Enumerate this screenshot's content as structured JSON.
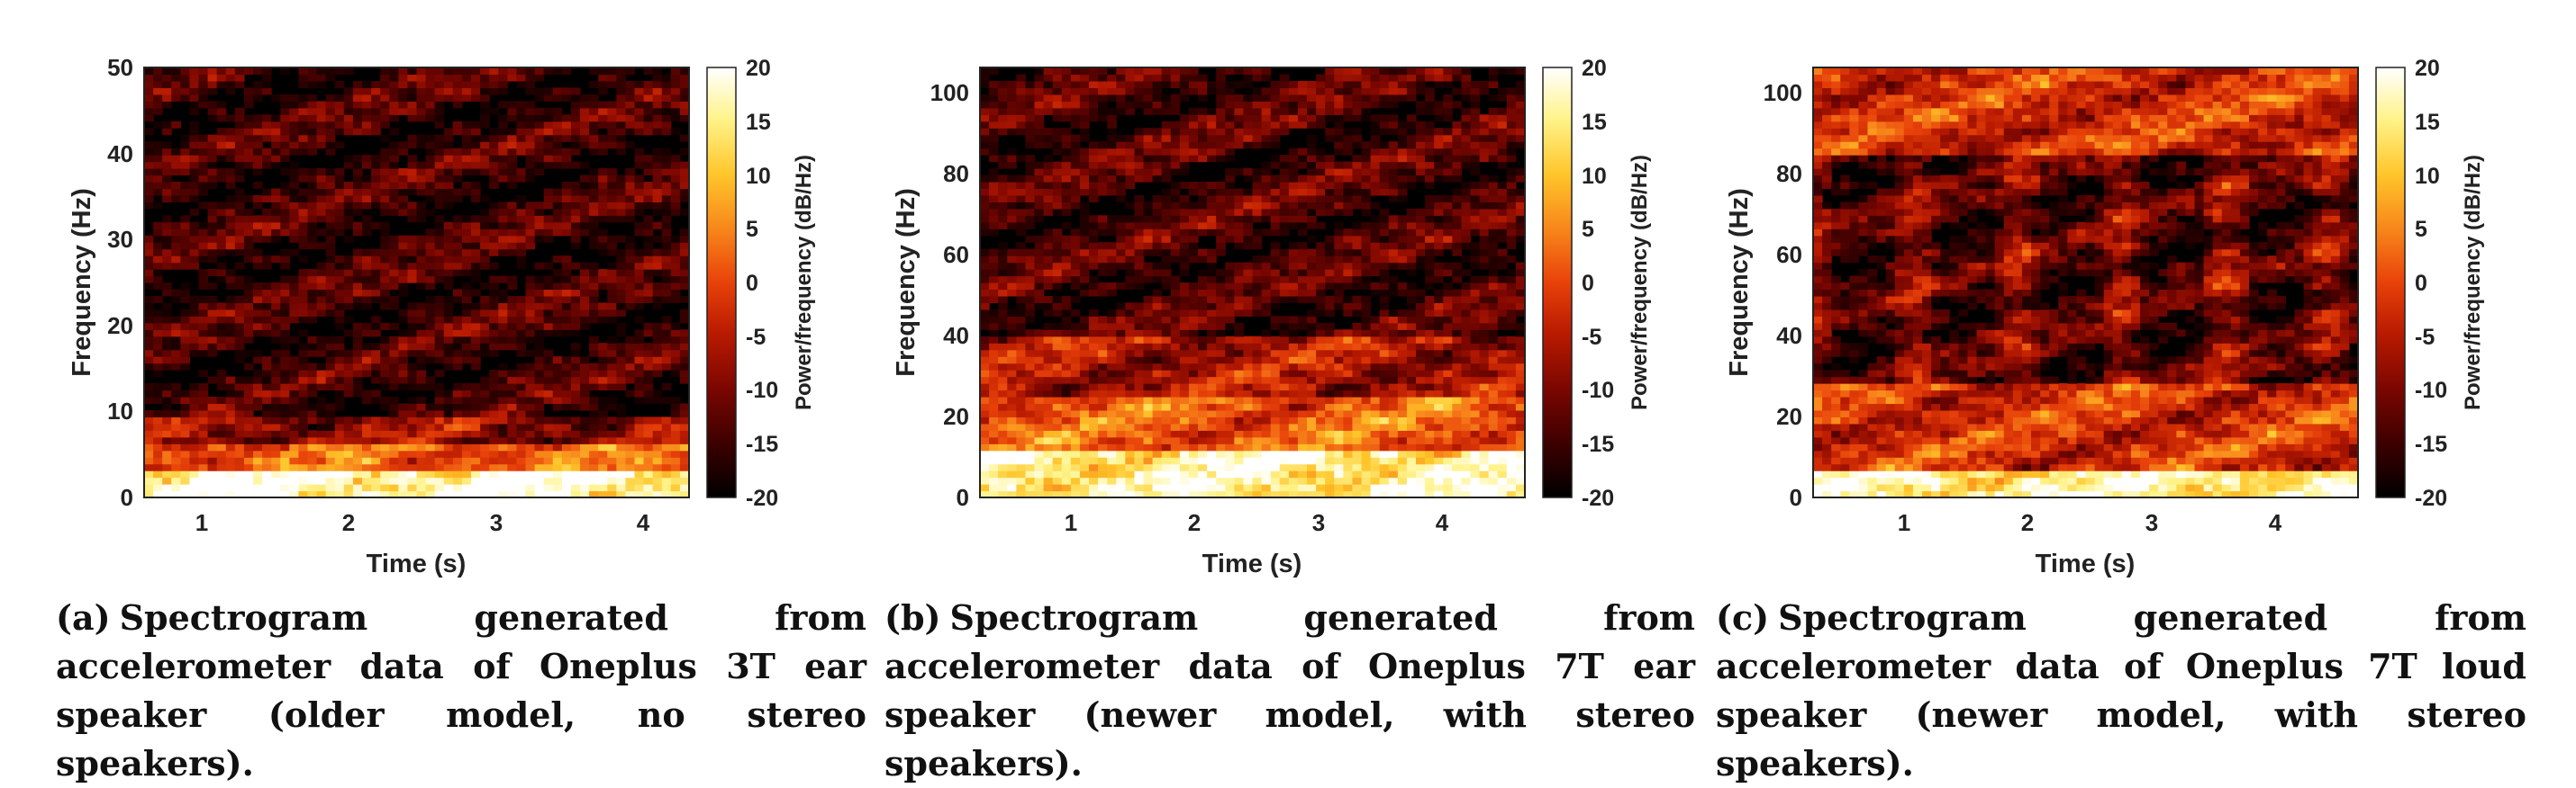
{
  "figure": {
    "colormap": [
      "#000000",
      "#3a0000",
      "#7a0600",
      "#b81a00",
      "#e8420a",
      "#f7841a",
      "#ffc52a",
      "#fff38a",
      "#ffffff"
    ],
    "colorbar": {
      "label": "Power/frequency (dB/Hz)",
      "ticks": [
        "20",
        "15",
        "10",
        "5",
        "0",
        "-5",
        "-10",
        "-15",
        "-20"
      ]
    }
  },
  "chart_data": [
    {
      "type": "heatmap",
      "id": "a",
      "xlabel": "Time (s)",
      "ylabel": "Frequency (Hz)",
      "xlim": [
        0.6,
        4.3
      ],
      "ylim": [
        0,
        50
      ],
      "xticks": [
        "1",
        "2",
        "3",
        "4"
      ],
      "yticks": [
        "0",
        "10",
        "20",
        "30",
        "40",
        "50"
      ],
      "clim": [
        -20,
        20
      ],
      "description": "Energy concentrated at 0-3 Hz (bright yellow band), moderate energy 3-9 Hz, faint red horizontal streaks above 10 Hz",
      "bands": [
        {
          "f_lo": 0,
          "f_hi": 3,
          "level": 18
        },
        {
          "f_lo": 3,
          "f_hi": 6,
          "level": 2
        },
        {
          "f_lo": 6,
          "f_hi": 9,
          "level": -8
        },
        {
          "f_lo": 9,
          "f_hi": 50,
          "level": -15
        }
      ],
      "caption_label": "(a)",
      "caption": "Spectrogram generated from accelerometer data of Oneplus 3T ear speaker (older model, no stereo speakers)."
    },
    {
      "type": "heatmap",
      "id": "b",
      "xlabel": "Time (s)",
      "ylabel": "Frequency (Hz)",
      "xlim": [
        0.3,
        4.7
      ],
      "ylim": [
        0,
        106
      ],
      "xticks": [
        "1",
        "2",
        "3",
        "4"
      ],
      "yticks": [
        "0",
        "20",
        "40",
        "60",
        "80",
        "100"
      ],
      "clim": [
        -20,
        20
      ],
      "description": "Bright yellow-white energy below 12 Hz, dense orange/red activity 12-40 Hz, scattered red blobs up to 106 Hz",
      "bands": [
        {
          "f_lo": 0,
          "f_hi": 12,
          "level": 16
        },
        {
          "f_lo": 12,
          "f_hi": 25,
          "level": 2
        },
        {
          "f_lo": 25,
          "f_hi": 40,
          "level": -6
        },
        {
          "f_lo": 40,
          "f_hi": 106,
          "level": -14
        }
      ],
      "caption_label": "(b)",
      "caption": "Spectrogram generated from accelerometer data of Oneplus 7T ear speaker (newer model, with stereo speakers)."
    },
    {
      "type": "heatmap",
      "id": "c",
      "xlabel": "Time (s)",
      "ylabel": "Frequency (Hz)",
      "xlim": [
        0.3,
        4.7
      ],
      "ylim": [
        0,
        106
      ],
      "xticks": [
        "1",
        "2",
        "3",
        "4"
      ],
      "yticks": [
        "0",
        "20",
        "40",
        "60",
        "80",
        "100"
      ],
      "clim": [
        -20,
        20
      ],
      "description": "Bright band below 6 Hz, orange/red activity 6-28 Hz, strong orange blobs between 85-106 Hz, vertical red columns in between",
      "bands": [
        {
          "f_lo": 0,
          "f_hi": 6,
          "level": 16
        },
        {
          "f_lo": 6,
          "f_hi": 28,
          "level": -2
        },
        {
          "f_lo": 28,
          "f_hi": 85,
          "level": -12
        },
        {
          "f_lo": 85,
          "f_hi": 106,
          "level": -2
        }
      ],
      "caption_label": "(c)",
      "caption": "Spectrogram generated from accelerometer data of Oneplus 7T loud speaker (newer model, with stereo speakers)."
    }
  ]
}
